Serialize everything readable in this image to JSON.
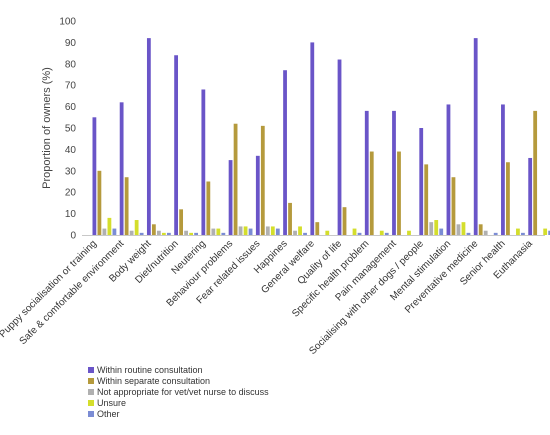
{
  "chart_data": {
    "type": "bar",
    "ylabel": "Proportion of owners (%)",
    "ylim": [
      0,
      100
    ],
    "yticks": [
      0,
      10,
      20,
      30,
      40,
      50,
      60,
      70,
      80,
      90,
      100
    ],
    "legend_position": "bottom-center",
    "grid": false,
    "categories": [
      "Puppy socialisation or training",
      "Safe & comfortable environment",
      "Body weight",
      "Diet/nutrition",
      "Neutering",
      "Behaviour problems",
      "Fear related issues",
      "Happines",
      "General welfare",
      "Quality of life",
      "Specific health problem",
      "Pain management",
      "Socialising with other dogs / people",
      "Mental stimulation",
      "Preventative medicine",
      "Senior health",
      "Euthanasia"
    ],
    "series": [
      {
        "name": "Within routine consultation",
        "color": "#6a55c8",
        "values": [
          55,
          62,
          92,
          84,
          68,
          35,
          37,
          77,
          90,
          82,
          58,
          58,
          50,
          61,
          92,
          61,
          36
        ]
      },
      {
        "name": "Within separate consultation",
        "color": "#b59a3c",
        "values": [
          30,
          27,
          5,
          12,
          25,
          52,
          51,
          15,
          6,
          13,
          39,
          39,
          33,
          27,
          5,
          34,
          58
        ]
      },
      {
        "name": "Not appropriate for vet/vet nurse to discuss",
        "color": "#b0b0b0",
        "values": [
          3,
          2,
          2,
          2,
          3,
          4,
          4,
          2,
          0,
          0,
          0,
          0,
          6,
          5,
          2,
          0,
          0
        ]
      },
      {
        "name": "Unsure",
        "color": "#d4de2c",
        "values": [
          8,
          7,
          1,
          1,
          3,
          4,
          4,
          4,
          2,
          3,
          2,
          2,
          7,
          6,
          0,
          3,
          3
        ]
      },
      {
        "name": "Other",
        "color": "#7b8cd4",
        "values": [
          3,
          1,
          1,
          1,
          1,
          3,
          3,
          1,
          0,
          1,
          1,
          0,
          3,
          1,
          1,
          1,
          2
        ]
      }
    ]
  }
}
